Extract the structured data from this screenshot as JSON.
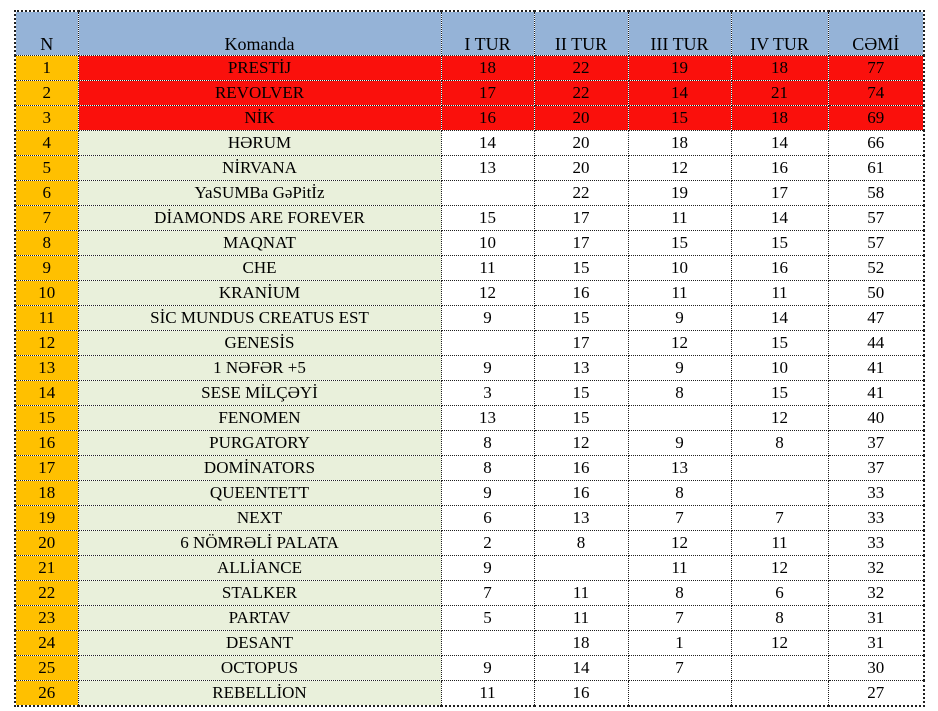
{
  "table": {
    "columns": [
      "N",
      "Komanda",
      "I TUR",
      "II TUR",
      "III TUR",
      "IV TUR",
      "CƏMİ"
    ],
    "rows": [
      {
        "n": "1",
        "team": "PRESTİJ",
        "scores": [
          "18",
          "22",
          "19",
          "18"
        ],
        "total": "77",
        "style": "red"
      },
      {
        "n": "2",
        "team": "REVOLVER",
        "scores": [
          "17",
          "22",
          "14",
          "21"
        ],
        "total": "74",
        "style": "red"
      },
      {
        "n": "3",
        "team": "NİK",
        "scores": [
          "16",
          "20",
          "15",
          "18"
        ],
        "total": "69",
        "style": "red"
      },
      {
        "n": "4",
        "team": "HƏRUM",
        "scores": [
          "14",
          "20",
          "18",
          "14"
        ],
        "total": "66",
        "style": "green"
      },
      {
        "n": "5",
        "team": "NİRVANA",
        "scores": [
          "13",
          "20",
          "12",
          "16"
        ],
        "total": "61",
        "style": "green"
      },
      {
        "n": "6",
        "team": "YaSUMBa GəPitİz",
        "scores": [
          "",
          "22",
          "19",
          "17"
        ],
        "total": "58",
        "style": "green"
      },
      {
        "n": "7",
        "team": "DİAMONDS ARE FOREVER",
        "scores": [
          "15",
          "17",
          "11",
          "14"
        ],
        "total": "57",
        "style": "green"
      },
      {
        "n": "8",
        "team": "MAQNAT",
        "scores": [
          "10",
          "17",
          "15",
          "15"
        ],
        "total": "57",
        "style": "green"
      },
      {
        "n": "9",
        "team": "CHE",
        "scores": [
          "11",
          "15",
          "10",
          "16"
        ],
        "total": "52",
        "style": "green"
      },
      {
        "n": "10",
        "team": "KRANİUM",
        "scores": [
          "12",
          "16",
          "11",
          "11"
        ],
        "total": "50",
        "style": "green"
      },
      {
        "n": "11",
        "team": "SİC MUNDUS CREATUS EST",
        "scores": [
          "9",
          "15",
          "9",
          "14"
        ],
        "total": "47",
        "style": "green"
      },
      {
        "n": "12",
        "team": "GENESİS",
        "scores": [
          "",
          "17",
          "12",
          "15"
        ],
        "total": "44",
        "style": "green"
      },
      {
        "n": "13",
        "team": "1 NƏFƏR +5",
        "scores": [
          "9",
          "13",
          "9",
          "10"
        ],
        "total": "41",
        "style": "green"
      },
      {
        "n": "14",
        "team": "SESE MİLÇƏYİ",
        "scores": [
          "3",
          "15",
          "8",
          "15"
        ],
        "total": "41",
        "style": "green"
      },
      {
        "n": "15",
        "team": "FENOMEN",
        "scores": [
          "13",
          "15",
          "",
          "12"
        ],
        "total": "40",
        "style": "green"
      },
      {
        "n": "16",
        "team": "PURGATORY",
        "scores": [
          "8",
          "12",
          "9",
          "8"
        ],
        "total": "37",
        "style": "green"
      },
      {
        "n": "17",
        "team": "DOMİNATORS",
        "scores": [
          "8",
          "16",
          "13",
          ""
        ],
        "total": "37",
        "style": "green"
      },
      {
        "n": "18",
        "team": "QUEENTETT",
        "scores": [
          "9",
          "16",
          "8",
          ""
        ],
        "total": "33",
        "style": "green"
      },
      {
        "n": "19",
        "team": "NEXT",
        "scores": [
          "6",
          "13",
          "7",
          "7"
        ],
        "total": "33",
        "style": "green"
      },
      {
        "n": "20",
        "team": "6 NÖMRƏLİ PALATA",
        "scores": [
          "2",
          "8",
          "12",
          "11"
        ],
        "total": "33",
        "style": "green"
      },
      {
        "n": "21",
        "team": "ALLİANCE",
        "scores": [
          "9",
          "",
          "11",
          "12"
        ],
        "total": "32",
        "style": "green"
      },
      {
        "n": "22",
        "team": "STALKER",
        "scores": [
          "7",
          "11",
          "8",
          "6"
        ],
        "total": "32",
        "style": "green"
      },
      {
        "n": "23",
        "team": "PARTAV",
        "scores": [
          "5",
          "11",
          "7",
          "8"
        ],
        "total": "31",
        "style": "green"
      },
      {
        "n": "24",
        "team": "DESANT",
        "scores": [
          "",
          "18",
          "1",
          "12"
        ],
        "total": "31",
        "style": "green"
      },
      {
        "n": "25",
        "team": "OCTOPUS",
        "scores": [
          "9",
          "14",
          "7",
          ""
        ],
        "total": "30",
        "style": "green"
      },
      {
        "n": "26",
        "team": "REBELLİON",
        "scores": [
          "11",
          "16",
          "",
          ""
        ],
        "total": "27",
        "style": "green"
      }
    ]
  },
  "colors": {
    "header_bg": "#95B3D7",
    "rank_bg": "#FFC000",
    "top3_bg": "#FA100C",
    "team_bg": "#E9F0DB",
    "cell_bg": "#FFFFFF",
    "text": "#000000"
  }
}
